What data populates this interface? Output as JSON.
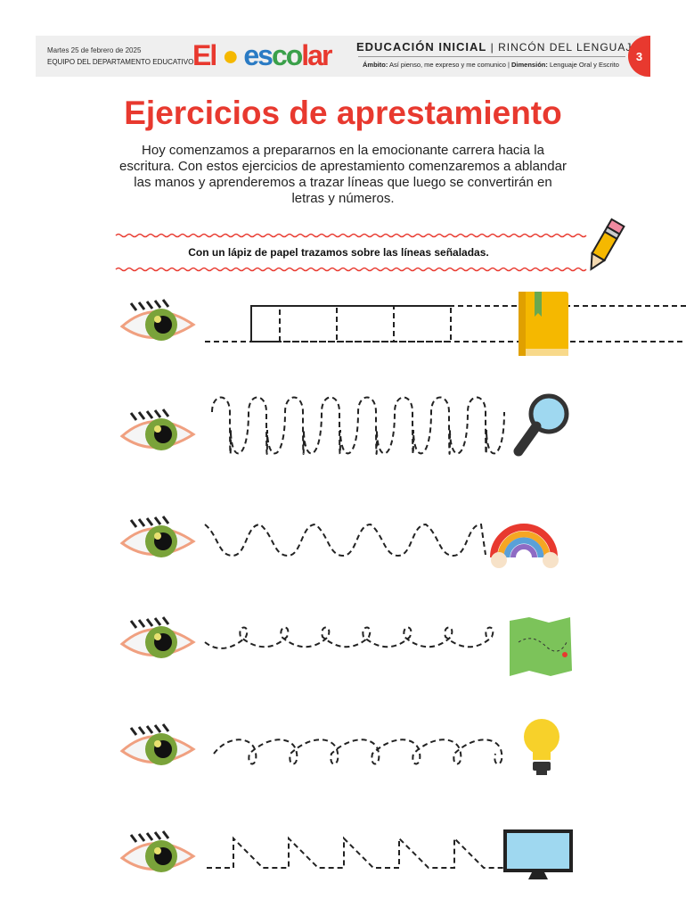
{
  "header": {
    "date": "Martes 25 de febrero de 2025",
    "team": "EQUIPO DEL DEPARTAMENTO EDUCATIVO",
    "logo": "El abc escolar",
    "section": "EDUCACIÓN INICIAL",
    "section_sep": " | ",
    "subsection": "RINCÓN DEL LENGUAJE",
    "ambito_label": "Ámbito:",
    "ambito": " Así pienso, me expreso y me comunico | ",
    "dimension_label": "Dimensión:",
    "dimension": " Lenguaje Oral y Escrito",
    "page_number": "3"
  },
  "title": "Ejercicios de aprestamiento",
  "intro": "Hoy comenzamos a prepararnos en la emocionante carrera hacia la escritura. Con estos ejercicios de aprestamiento comenzaremos a ablandar las manos y aprenderemos a trazar líneas que luego se convertirán en letras y números.",
  "instruction": "Con un lápiz de papel trazamos sobre las líneas señaladas.",
  "colors": {
    "accent": "#e8392f",
    "eye_iris": "#7aa33a"
  },
  "rows": [
    {
      "pattern": "square-wave",
      "icon": "book-icon"
    },
    {
      "pattern": "vertical-loops",
      "icon": "magnifying-glass-icon"
    },
    {
      "pattern": "wave",
      "icon": "rainbow-icon"
    },
    {
      "pattern": "loops-up",
      "icon": "map-icon"
    },
    {
      "pattern": "loops-down",
      "icon": "lightbulb-icon"
    },
    {
      "pattern": "sawtooth",
      "icon": "monitor-icon"
    }
  ]
}
